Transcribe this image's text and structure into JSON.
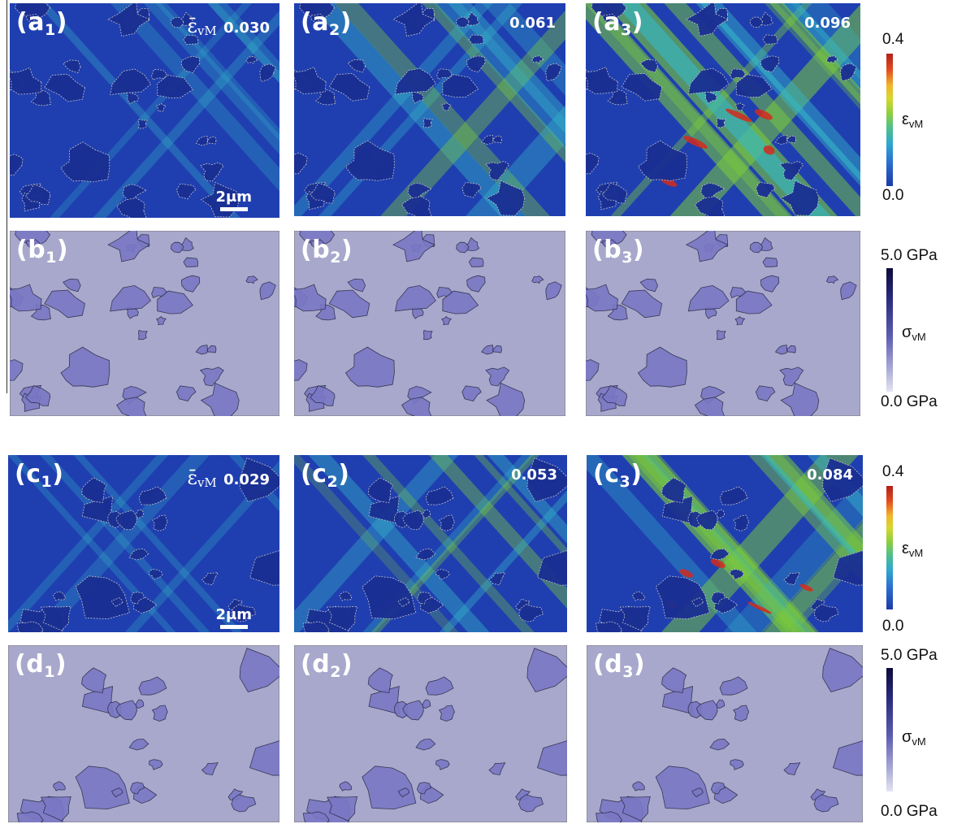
{
  "panels": {
    "a1": {
      "letter": "(a",
      "sub": "1",
      ")": "",
      "strain": "0.030",
      "strain_symbol": "ε̄",
      "strain_sub": "vM",
      "scalebar": "2μm"
    },
    "a2": {
      "letter": "(a",
      "sub": "2",
      "strain": "0.061"
    },
    "a3": {
      "letter": "(a",
      "sub": "3",
      "strain": "0.096"
    },
    "b1": {
      "letter": "(b",
      "sub": "1"
    },
    "b2": {
      "letter": "(b",
      "sub": "2"
    },
    "b3": {
      "letter": "(b",
      "sub": "3"
    },
    "c1": {
      "letter": "(c",
      "sub": "1",
      "strain": "0.029",
      "strain_symbol": "ε̄",
      "strain_sub": "vM",
      "scalebar": "2μm"
    },
    "c2": {
      "letter": "(c",
      "sub": "2",
      "strain": "0.053"
    },
    "c3": {
      "letter": "(c",
      "sub": "3",
      "strain": "0.084"
    },
    "d1": {
      "letter": "(d",
      "sub": "1"
    },
    "d2": {
      "letter": "(d",
      "sub": "2"
    },
    "d3": {
      "letter": "(d",
      "sub": "3"
    }
  },
  "close_paren": ")",
  "colorbars": {
    "strain_top": {
      "max": "0.4",
      "min": "0.0",
      "symbol": "ε",
      "symbol_sub": "vM"
    },
    "stress_top": {
      "max": "5.0 GPa",
      "min": "0.0 GPa",
      "symbol": "σ",
      "symbol_sub": "vM"
    },
    "strain_bottom": {
      "max": "0.4",
      "min": "0.0",
      "symbol": "ε",
      "symbol_sub": "vM"
    },
    "stress_bottom": {
      "max": "5.0 GPa",
      "min": "0.0 GPa",
      "symbol": "σ",
      "symbol_sub": "vM"
    }
  },
  "colors": {
    "strain_low": "#1f3fb0",
    "strain_mid": "#35b8c8",
    "strain_green": "#7ccd3a",
    "strain_high": "#d42a1c",
    "stress_matrix": "#a8a8cc",
    "stress_particle": "#7a78c4"
  }
}
